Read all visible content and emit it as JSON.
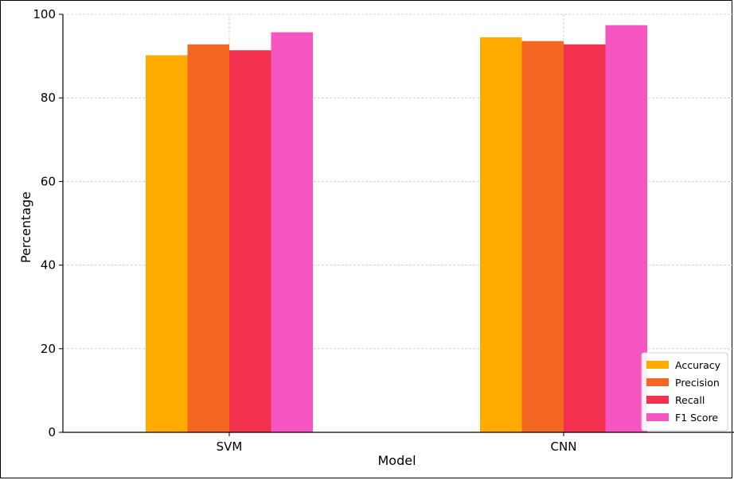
{
  "chart_data": {
    "type": "bar",
    "title": "",
    "xlabel": "Model",
    "ylabel": "Percentage",
    "categories": [
      "SVM",
      "CNN"
    ],
    "series": [
      {
        "name": "Accuracy",
        "values": [
          90.2,
          94.5
        ],
        "color": "#ffab00"
      },
      {
        "name": "Precision",
        "values": [
          92.8,
          93.6
        ],
        "color": "#f36723"
      },
      {
        "name": "Recall",
        "values": [
          91.4,
          92.8
        ],
        "color": "#f2314e"
      },
      {
        "name": "F1 Score",
        "values": [
          95.7,
          97.4
        ],
        "color": "#f656c2"
      }
    ],
    "ylim": [
      0,
      100
    ],
    "yticks": [
      0,
      20,
      40,
      60,
      80,
      100
    ],
    "grid": true,
    "legend_position": "bottom-right"
  }
}
